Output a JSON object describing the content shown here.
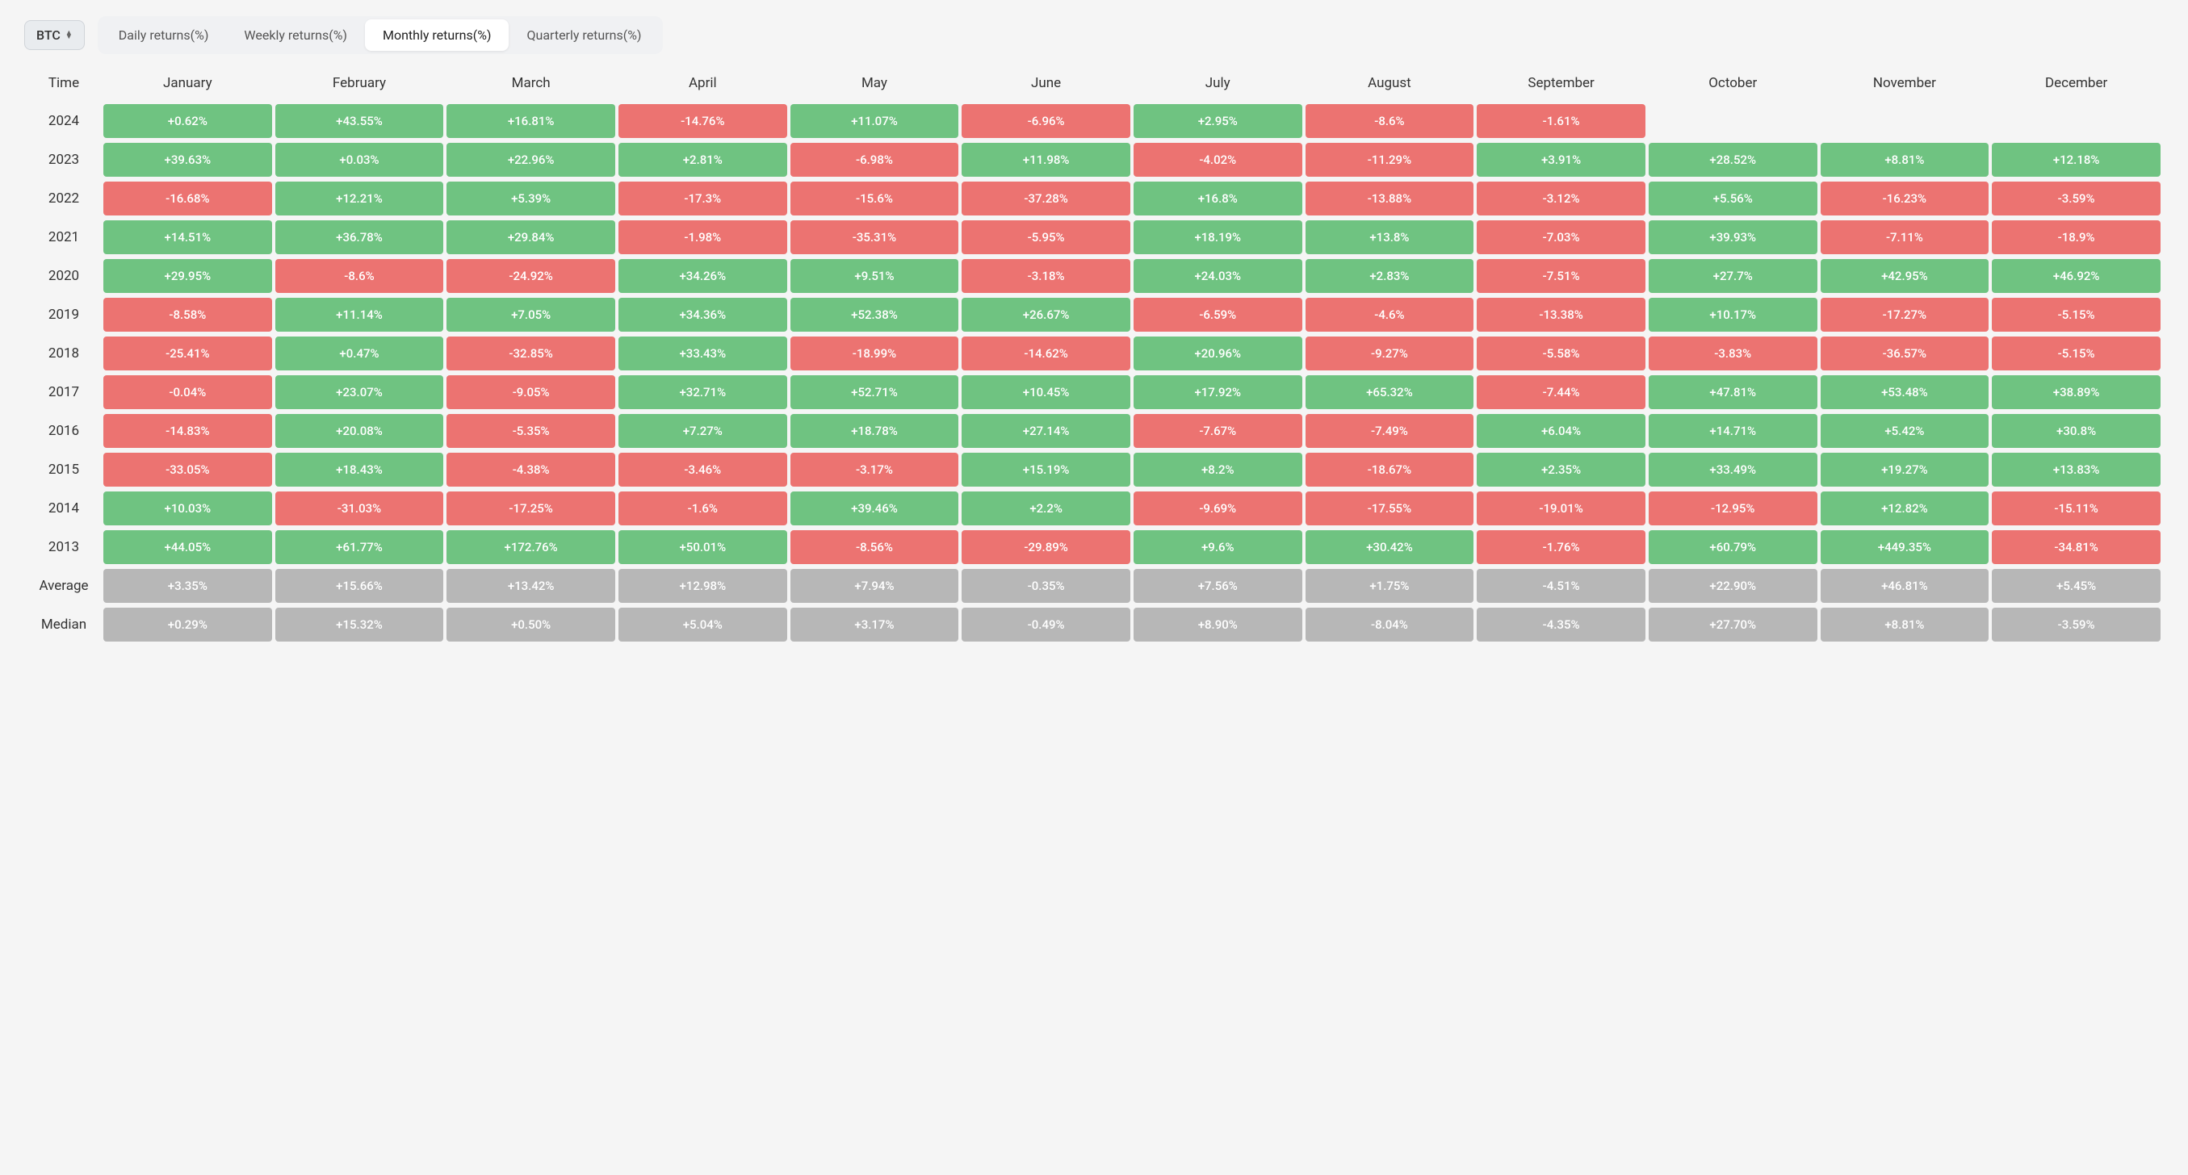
{
  "asset_selector": {
    "value": "BTC"
  },
  "tabs": [
    {
      "label": "Daily returns(%)",
      "active": false
    },
    {
      "label": "Weekly returns(%)",
      "active": false
    },
    {
      "label": "Monthly returns(%)",
      "active": true
    },
    {
      "label": "Quarterly returns(%)",
      "active": false
    }
  ],
  "time_header": "Time",
  "columns": [
    "January",
    "February",
    "March",
    "April",
    "May",
    "June",
    "July",
    "August",
    "September",
    "October",
    "November",
    "December"
  ],
  "summary_labels": {
    "average": "Average",
    "median": "Median"
  },
  "colors": {
    "positive_bg": "#6fc381",
    "negative_bg": "#ec7371",
    "summary_bg": "#b7b7b7",
    "cell_text": "#ffffff",
    "page_bg": "#f5f5f5",
    "header_text": "#333333"
  },
  "rows": [
    {
      "year": "2024",
      "values": [
        0.62,
        43.55,
        16.81,
        -14.76,
        11.07,
        -6.96,
        2.95,
        -8.6,
        -1.61,
        null,
        null,
        null
      ]
    },
    {
      "year": "2023",
      "values": [
        39.63,
        0.03,
        22.96,
        2.81,
        -6.98,
        11.98,
        -4.02,
        -11.29,
        3.91,
        28.52,
        8.81,
        12.18
      ]
    },
    {
      "year": "2022",
      "values": [
        -16.68,
        12.21,
        5.39,
        -17.3,
        -15.6,
        -37.28,
        16.8,
        -13.88,
        -3.12,
        5.56,
        -16.23,
        -3.59
      ]
    },
    {
      "year": "2021",
      "values": [
        14.51,
        36.78,
        29.84,
        -1.98,
        -35.31,
        -5.95,
        18.19,
        13.8,
        -7.03,
        39.93,
        -7.11,
        -18.9
      ]
    },
    {
      "year": "2020",
      "values": [
        29.95,
        -8.6,
        -24.92,
        34.26,
        9.51,
        -3.18,
        24.03,
        2.83,
        -7.51,
        27.7,
        42.95,
        46.92
      ]
    },
    {
      "year": "2019",
      "values": [
        -8.58,
        11.14,
        7.05,
        34.36,
        52.38,
        26.67,
        -6.59,
        -4.6,
        -13.38,
        10.17,
        -17.27,
        -5.15
      ]
    },
    {
      "year": "2018",
      "values": [
        -25.41,
        0.47,
        -32.85,
        33.43,
        -18.99,
        -14.62,
        20.96,
        -9.27,
        -5.58,
        -3.83,
        -36.57,
        -5.15
      ]
    },
    {
      "year": "2017",
      "values": [
        -0.04,
        23.07,
        -9.05,
        32.71,
        52.71,
        10.45,
        17.92,
        65.32,
        -7.44,
        47.81,
        53.48,
        38.89
      ]
    },
    {
      "year": "2016",
      "values": [
        -14.83,
        20.08,
        -5.35,
        7.27,
        18.78,
        27.14,
        -7.67,
        -7.49,
        6.04,
        14.71,
        5.42,
        30.8
      ]
    },
    {
      "year": "2015",
      "values": [
        -33.05,
        18.43,
        -4.38,
        -3.46,
        -3.17,
        15.19,
        8.2,
        -18.67,
        2.35,
        33.49,
        19.27,
        13.83
      ]
    },
    {
      "year": "2014",
      "values": [
        10.03,
        -31.03,
        -17.25,
        -1.6,
        39.46,
        2.2,
        -9.69,
        -17.55,
        -19.01,
        -12.95,
        12.82,
        -15.11
      ]
    },
    {
      "year": "2013",
      "values": [
        44.05,
        61.77,
        172.76,
        50.01,
        -8.56,
        -29.89,
        9.6,
        30.42,
        -1.76,
        60.79,
        449.35,
        -34.81
      ]
    }
  ],
  "summary": {
    "average": [
      3.35,
      15.66,
      13.42,
      12.98,
      7.94,
      -0.35,
      7.56,
      1.75,
      -4.51,
      22.9,
      46.81,
      5.45
    ],
    "median": [
      0.29,
      15.32,
      0.5,
      5.04,
      3.17,
      -0.49,
      8.9,
      -8.04,
      -4.35,
      27.7,
      8.81,
      -3.59
    ]
  }
}
